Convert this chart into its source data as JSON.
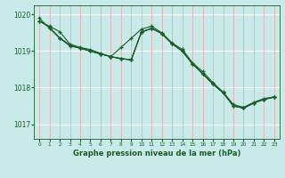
{
  "background_color": "#c8eae8",
  "grid_color_h": "#ffffff",
  "grid_color_v": "#e8b8b8",
  "line_color": "#1a5c2a",
  "title": "Graphe pression niveau de la mer (hPa)",
  "xlim": [
    -0.5,
    23.5
  ],
  "ylim": [
    1016.6,
    1020.25
  ],
  "yticks": [
    1017,
    1018,
    1019,
    1020
  ],
  "xticks": [
    0,
    1,
    2,
    3,
    4,
    5,
    6,
    7,
    8,
    9,
    10,
    11,
    12,
    13,
    14,
    15,
    16,
    17,
    18,
    19,
    20,
    21,
    22,
    23
  ],
  "series": [
    {
      "x": [
        0,
        1,
        2,
        3,
        4,
        5,
        6,
        7,
        8,
        9,
        10,
        11,
        12,
        13,
        14,
        15,
        16,
        17,
        18,
        19,
        20,
        21,
        22,
        23
      ],
      "y": [
        1019.82,
        1019.68,
        1019.53,
        1019.19,
        1019.1,
        1019.04,
        1018.94,
        1018.84,
        1018.8,
        1018.76,
        1019.52,
        1019.62,
        1019.48,
        1019.2,
        1019.0,
        1018.65,
        1018.38,
        1018.1,
        1017.86,
        1017.5,
        1017.44,
        1017.58,
        1017.68,
        1017.74
      ]
    },
    {
      "x": [
        0,
        1,
        2,
        3,
        4,
        5,
        6,
        7,
        8,
        9,
        10,
        11,
        12,
        13,
        14,
        15,
        16,
        17,
        18,
        19,
        20,
        21,
        22,
        23
      ],
      "y": [
        1019.9,
        1019.62,
        1019.35,
        1019.14,
        1019.08,
        1019.0,
        1018.92,
        1018.85,
        1018.79,
        1018.76,
        1019.52,
        1019.62,
        1019.48,
        1019.2,
        1019.0,
        1018.65,
        1018.38,
        1018.1,
        1017.86,
        1017.5,
        1017.44,
        1017.58,
        1017.68,
        1017.74
      ]
    },
    {
      "x": [
        0,
        1,
        2,
        3,
        4,
        5,
        6,
        7,
        8,
        9,
        10,
        11,
        12,
        13,
        14,
        15,
        16,
        17,
        18,
        19,
        20,
        21,
        22,
        23
      ],
      "y": [
        1019.82,
        1019.65,
        1019.36,
        1019.16,
        1019.08,
        1019.0,
        1018.92,
        1018.85,
        1019.1,
        1019.35,
        1019.6,
        1019.68,
        1019.5,
        1019.22,
        1019.05,
        1018.68,
        1018.44,
        1018.14,
        1017.88,
        1017.54,
        1017.46,
        1017.6,
        1017.7,
        1017.75
      ]
    },
    {
      "x": [
        2,
        3,
        4,
        5,
        6,
        7,
        8,
        9,
        10,
        11,
        12,
        13,
        14,
        15,
        16,
        17,
        18,
        19,
        20,
        21,
        22,
        23
      ],
      "y": [
        1019.36,
        1019.16,
        1019.08,
        1019.0,
        1018.92,
        1018.85,
        1018.79,
        1018.76,
        1019.52,
        1019.62,
        1019.48,
        1019.2,
        1019.0,
        1018.65,
        1018.38,
        1018.1,
        1017.86,
        1017.5,
        1017.44,
        1017.58,
        1017.68,
        1017.74
      ]
    }
  ]
}
